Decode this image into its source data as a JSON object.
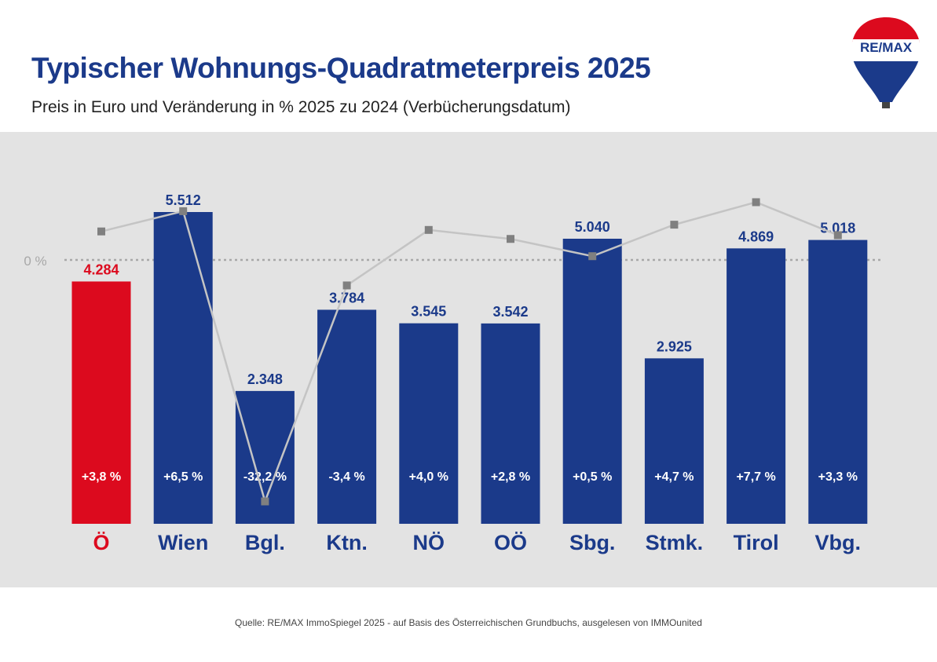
{
  "title": "Typischer Wohnungs-Quadratmeterpreis 2025",
  "subtitle": "Preis in Euro und Veränderung in % 2025 zu 2024 (Verbücherungsdatum)",
  "source": "Quelle: RE/MAX ImmoSpiegel 2025 - auf Basis des Österreichischen Grundbuchs, ausgelesen von IMMOunited",
  "logo_text": "RE/MAX",
  "colors": {
    "highlight": "#dc0a1e",
    "bar": "#1b3a8a",
    "line": "#c4c4c4",
    "marker": "#808080",
    "zero_line": "#a8a8a8",
    "background": "#e3e3e3"
  },
  "chart_data": {
    "type": "bar",
    "categories": [
      "Ö",
      "Wien",
      "Bgl.",
      "Ktn.",
      "NÖ",
      "OÖ",
      "Sbg.",
      "Stmk.",
      "Tirol",
      "Vbg."
    ],
    "series": [
      {
        "type": "bar",
        "values": [
          4284,
          5512,
          2348,
          3784,
          3545,
          3542,
          5040,
          2925,
          4869,
          5018
        ],
        "labels": [
          "4.284",
          "5.512",
          "2.348",
          "3.784",
          "3.545",
          "3.542",
          "5.040",
          "2.925",
          "4.869",
          "5.018"
        ]
      },
      {
        "type": "line",
        "values": [
          3.8,
          6.5,
          -32.2,
          -3.4,
          4.0,
          2.8,
          0.5,
          4.7,
          7.7,
          3.3
        ],
        "labels": [
          "+3,8 %",
          "+6,5 %",
          "-32,2 %",
          "-3,4 %",
          "+4,0 %",
          "+2,8 %",
          "+0,5 %",
          "+4,7 %",
          "+7,7 %",
          "+3,3 %"
        ]
      }
    ],
    "highlight_category": "Ö",
    "zero_label": "0 %",
    "grid": false
  }
}
